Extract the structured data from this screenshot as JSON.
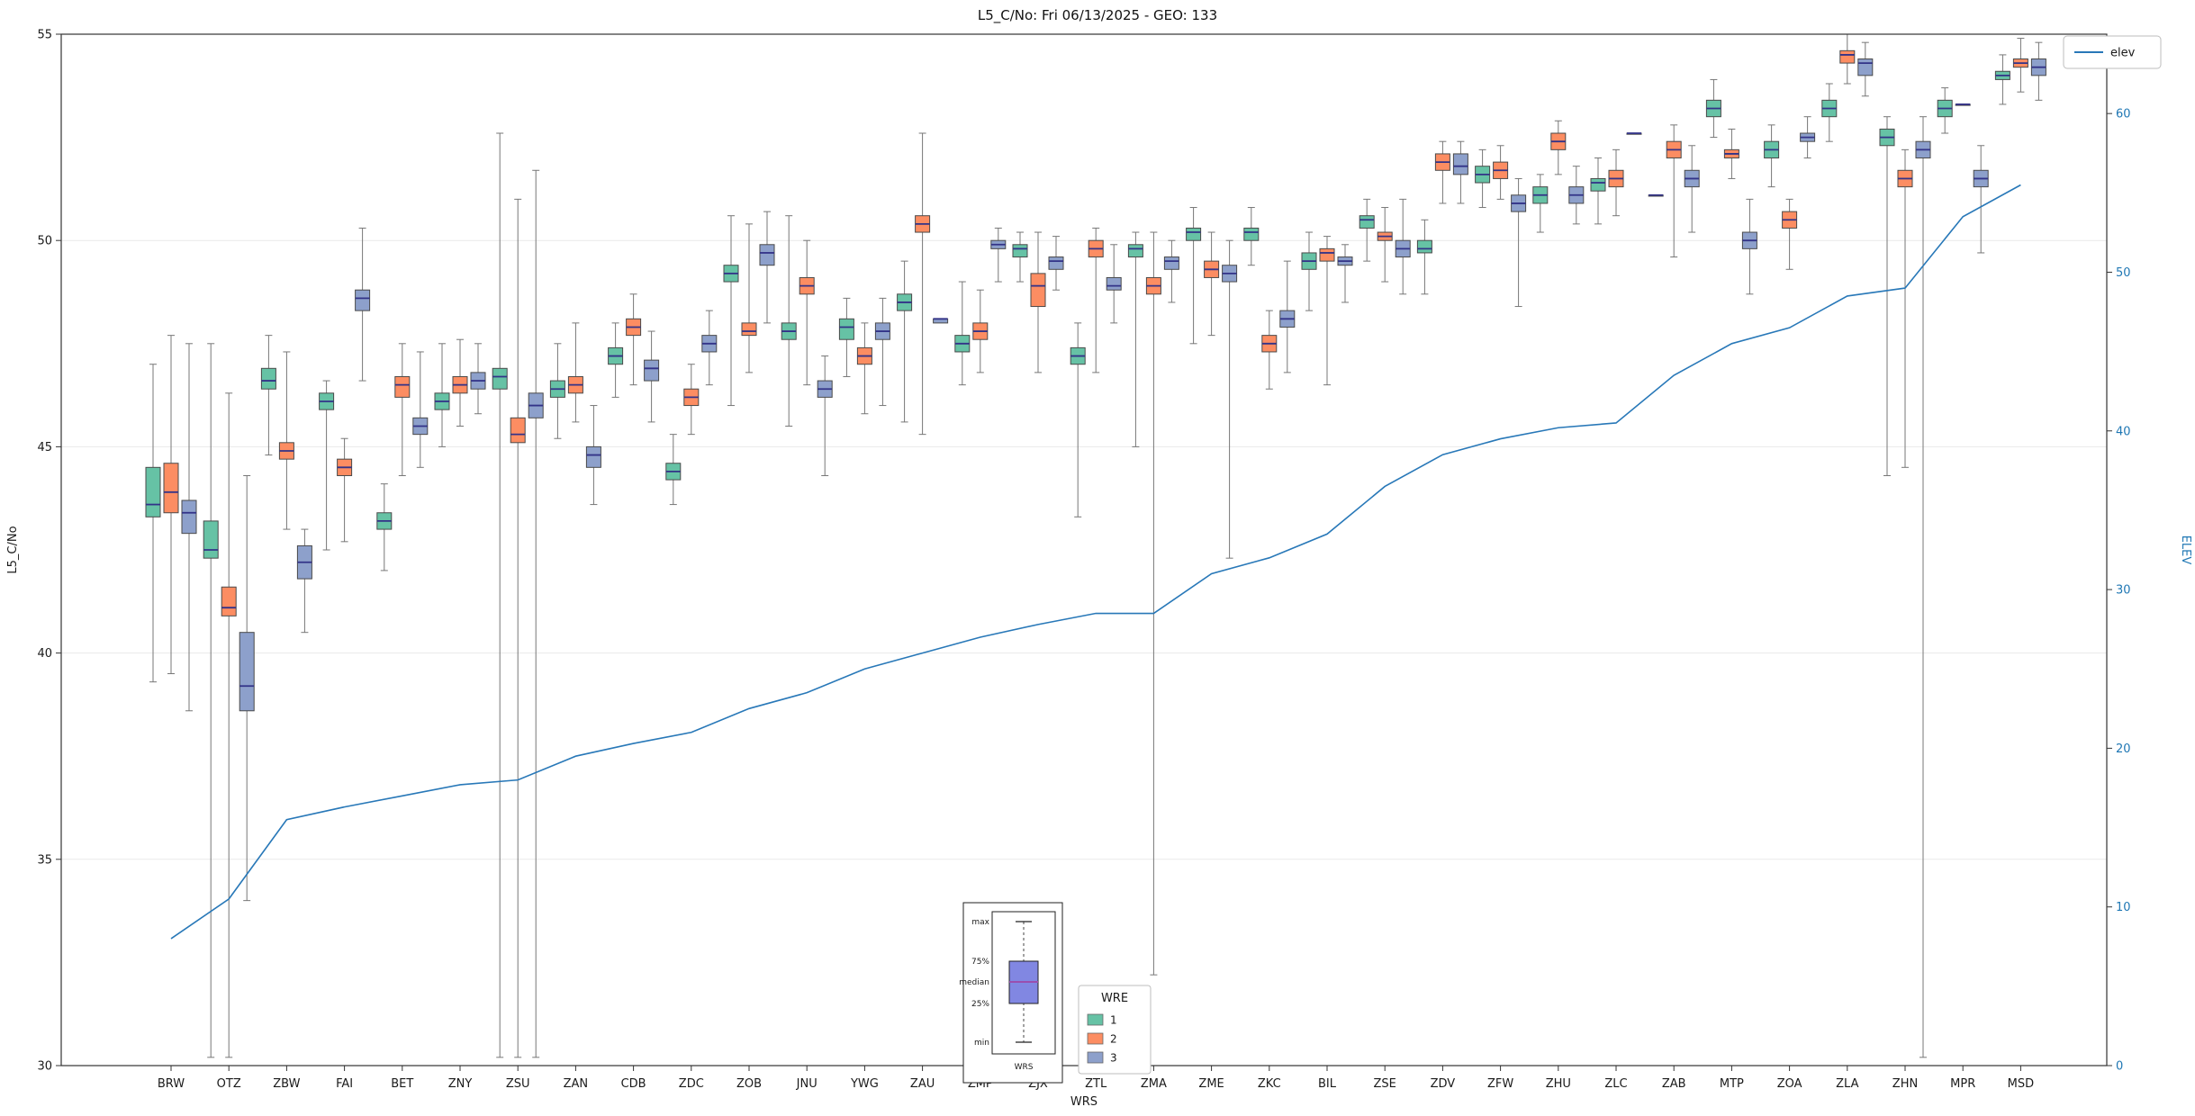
{
  "title": "L5_C/No: Fri 06/13/2025 - GEO: 133",
  "colors": {
    "series1": "#66c2a5",
    "series2": "#fc8d62",
    "series3": "#8da0cb",
    "median": "#333388",
    "elev_line": "#2878b8",
    "whisker": "#777777",
    "box_edge": "#4a4a4a",
    "right_axis_text": "#1f77b4",
    "grid": "#e9e9e9",
    "frame": "#333333",
    "inset_box_fill": "#8187e2",
    "inset_median": "#9a4fae"
  },
  "legend_elev": {
    "label": "elev"
  },
  "legend_wre": {
    "title": "WRE",
    "entries": [
      {
        "label": "1",
        "color": "#66c2a5"
      },
      {
        "label": "2",
        "color": "#fc8d62"
      },
      {
        "label": "3",
        "color": "#8da0cb"
      }
    ]
  },
  "inset": {
    "labels": [
      "max",
      "75%",
      "median",
      "25%",
      "min"
    ],
    "xlabel": "WRS"
  },
  "chart_data": {
    "type": "box",
    "title": "L5_C/No: Fri 06/13/2025 - GEO: 133",
    "xlabel": "WRS",
    "ylabel": "L5_C/No",
    "ylabel_right": "ELEV",
    "grid": true,
    "stats_format": "[whisker_min, q1, median, q3, whisker_max]",
    "axes": {
      "left": {
        "min": 30,
        "max": 55,
        "ticks": [
          30,
          35,
          40,
          45,
          50,
          55
        ]
      },
      "right": {
        "min": 0,
        "max": 65,
        "ticks": [
          0,
          10,
          20,
          30,
          40,
          50,
          60
        ]
      }
    },
    "categories": [
      "BRW",
      "OTZ",
      "ZBW",
      "FAI",
      "BET",
      "ZNY",
      "ZSU",
      "ZAN",
      "CDB",
      "ZDC",
      "ZOB",
      "JNU",
      "YWG",
      "ZAU",
      "ZMP",
      "ZJX",
      "ZTL",
      "ZMA",
      "ZME",
      "ZKC",
      "BIL",
      "ZSE",
      "ZDV",
      "ZFW",
      "ZHU",
      "ZLC",
      "ZAB",
      "MTP",
      "ZOA",
      "ZLA",
      "ZHN",
      "MPR",
      "MSD"
    ],
    "box_series": [
      {
        "name": "1",
        "color": "#66c2a5",
        "stats": [
          [
            39.3,
            43.3,
            43.6,
            44.5,
            47.0
          ],
          [
            30.2,
            42.3,
            42.5,
            43.2,
            47.5
          ],
          [
            44.8,
            46.4,
            46.6,
            46.9,
            47.7
          ],
          [
            42.5,
            45.9,
            46.1,
            46.3,
            46.6
          ],
          [
            42.0,
            43.0,
            43.2,
            43.4,
            44.1
          ],
          [
            45.0,
            45.9,
            46.1,
            46.3,
            47.5
          ],
          [
            30.2,
            46.4,
            46.7,
            46.9,
            52.6
          ],
          [
            45.2,
            46.2,
            46.4,
            46.6,
            47.5
          ],
          [
            46.2,
            47.0,
            47.2,
            47.4,
            48.0
          ],
          [
            43.6,
            44.2,
            44.4,
            44.6,
            45.3
          ],
          [
            46.0,
            49.0,
            49.2,
            49.4,
            50.6
          ],
          [
            45.5,
            47.6,
            47.8,
            48.0,
            50.6
          ],
          [
            46.7,
            47.6,
            47.9,
            48.1,
            48.6
          ],
          [
            45.6,
            48.3,
            48.5,
            48.7,
            49.5
          ],
          [
            46.5,
            47.3,
            47.5,
            47.7,
            49.0
          ],
          [
            49.0,
            49.6,
            49.8,
            49.9,
            50.2
          ],
          [
            43.3,
            47.0,
            47.2,
            47.4,
            48.0
          ],
          [
            45.0,
            49.6,
            49.8,
            49.9,
            50.2
          ],
          [
            47.5,
            50.0,
            50.2,
            50.3,
            50.8
          ],
          [
            49.4,
            50.0,
            50.2,
            50.3,
            50.8
          ],
          [
            48.3,
            49.3,
            49.5,
            49.7,
            50.2
          ],
          [
            49.5,
            50.3,
            50.5,
            50.6,
            51.0
          ],
          [
            48.7,
            49.7,
            49.8,
            50.0,
            50.5
          ],
          [
            50.8,
            51.4,
            51.6,
            51.8,
            52.2
          ],
          [
            50.2,
            50.9,
            51.1,
            51.3,
            51.6
          ],
          [
            50.4,
            51.2,
            51.4,
            51.5,
            52.0
          ],
          [
            51.1,
            51.1,
            51.1,
            51.1,
            51.1
          ],
          [
            52.5,
            53.0,
            53.2,
            53.4,
            53.9
          ],
          [
            51.3,
            52.0,
            52.2,
            52.4,
            52.8
          ],
          [
            52.4,
            53.0,
            53.2,
            53.4,
            53.8
          ],
          [
            44.3,
            52.3,
            52.5,
            52.7,
            53.0
          ],
          [
            52.6,
            53.0,
            53.2,
            53.4,
            53.7
          ],
          [
            53.3,
            53.9,
            54.0,
            54.1,
            54.5
          ]
        ]
      },
      {
        "name": "2",
        "color": "#fc8d62",
        "stats": [
          [
            39.5,
            43.4,
            43.9,
            44.6,
            47.7
          ],
          [
            30.2,
            40.9,
            41.1,
            41.6,
            46.3
          ],
          [
            43.0,
            44.7,
            44.9,
            45.1,
            47.3
          ],
          [
            42.7,
            44.3,
            44.5,
            44.7,
            45.2
          ],
          [
            44.3,
            46.2,
            46.5,
            46.7,
            47.5
          ],
          [
            45.5,
            46.3,
            46.5,
            46.7,
            47.6
          ],
          [
            30.2,
            45.1,
            45.3,
            45.7,
            51.0
          ],
          [
            45.6,
            46.3,
            46.5,
            46.7,
            48.0
          ],
          [
            46.5,
            47.7,
            47.9,
            48.1,
            48.7
          ],
          [
            45.3,
            46.0,
            46.2,
            46.4,
            47.0
          ],
          [
            46.8,
            47.7,
            47.8,
            48.0,
            50.4
          ],
          [
            46.5,
            48.7,
            48.9,
            49.1,
            50.0
          ],
          [
            45.8,
            47.0,
            47.2,
            47.4,
            48.0
          ],
          [
            45.3,
            50.2,
            50.4,
            50.6,
            52.6
          ],
          [
            46.8,
            47.6,
            47.8,
            48.0,
            48.8
          ],
          [
            46.8,
            48.4,
            48.9,
            49.2,
            50.2
          ],
          [
            46.8,
            49.6,
            49.8,
            50.0,
            50.3
          ],
          [
            32.2,
            48.7,
            48.9,
            49.1,
            50.2
          ],
          [
            47.7,
            49.1,
            49.3,
            49.5,
            50.2
          ],
          [
            46.4,
            47.3,
            47.5,
            47.7,
            48.3
          ],
          [
            46.5,
            49.5,
            49.7,
            49.8,
            50.1
          ],
          [
            49.0,
            50.0,
            50.1,
            50.2,
            50.8
          ],
          [
            50.9,
            51.7,
            51.9,
            52.1,
            52.4
          ],
          [
            51.0,
            51.5,
            51.7,
            51.9,
            52.3
          ],
          [
            51.6,
            52.2,
            52.4,
            52.6,
            52.9
          ],
          [
            50.6,
            51.3,
            51.5,
            51.7,
            52.2
          ],
          [
            49.6,
            52.0,
            52.2,
            52.4,
            52.8
          ],
          [
            51.5,
            52.0,
            52.1,
            52.2,
            52.7
          ],
          [
            49.3,
            50.3,
            50.5,
            50.7,
            51.0
          ],
          [
            53.8,
            54.3,
            54.5,
            54.6,
            55.0
          ],
          [
            44.5,
            51.3,
            51.5,
            51.7,
            52.2
          ],
          [
            53.3,
            53.3,
            53.3,
            53.3,
            53.3
          ],
          [
            53.6,
            54.2,
            54.3,
            54.4,
            54.9
          ]
        ]
      },
      {
        "name": "3",
        "color": "#8da0cb",
        "stats": [
          [
            38.6,
            42.9,
            43.4,
            43.7,
            47.5
          ],
          [
            34.0,
            38.6,
            39.2,
            40.5,
            44.3
          ],
          [
            40.5,
            41.8,
            42.2,
            42.6,
            43.0
          ],
          [
            46.6,
            48.3,
            48.6,
            48.8,
            50.3
          ],
          [
            44.5,
            45.3,
            45.5,
            45.7,
            47.3
          ],
          [
            45.8,
            46.4,
            46.6,
            46.8,
            47.5
          ],
          [
            30.2,
            45.7,
            46.0,
            46.3,
            51.7
          ],
          [
            43.6,
            44.5,
            44.8,
            45.0,
            46.0
          ],
          [
            45.6,
            46.6,
            46.9,
            47.1,
            47.8
          ],
          [
            46.5,
            47.3,
            47.5,
            47.7,
            48.3
          ],
          [
            48.0,
            49.4,
            49.7,
            49.9,
            50.7
          ],
          [
            44.3,
            46.2,
            46.4,
            46.6,
            47.2
          ],
          [
            46.0,
            47.6,
            47.8,
            48.0,
            48.6
          ],
          [
            48.0,
            48.0,
            48.1,
            48.1,
            48.1
          ],
          [
            49.0,
            49.8,
            49.9,
            50.0,
            50.3
          ],
          [
            48.8,
            49.3,
            49.5,
            49.6,
            50.1
          ],
          [
            48.0,
            48.8,
            48.9,
            49.1,
            49.9
          ],
          [
            48.5,
            49.3,
            49.5,
            49.6,
            50.0
          ],
          [
            42.3,
            49.0,
            49.2,
            49.4,
            50.0
          ],
          [
            46.8,
            47.9,
            48.1,
            48.3,
            49.5
          ],
          [
            48.5,
            49.4,
            49.5,
            49.6,
            49.9
          ],
          [
            48.7,
            49.6,
            49.8,
            50.0,
            51.0
          ],
          [
            50.9,
            51.6,
            51.8,
            52.1,
            52.4
          ],
          [
            48.4,
            50.7,
            50.9,
            51.1,
            51.5
          ],
          [
            50.4,
            50.9,
            51.1,
            51.3,
            51.8
          ],
          [
            52.6,
            52.6,
            52.6,
            52.6,
            52.6
          ],
          [
            50.2,
            51.3,
            51.5,
            51.7,
            52.3
          ],
          [
            48.7,
            49.8,
            50.0,
            50.2,
            51.0
          ],
          [
            52.0,
            52.4,
            52.5,
            52.6,
            53.0
          ],
          [
            53.5,
            54.0,
            54.3,
            54.4,
            54.8
          ],
          [
            30.2,
            52.0,
            52.2,
            52.4,
            53.0
          ],
          [
            49.7,
            51.3,
            51.5,
            51.7,
            52.3
          ],
          [
            53.4,
            54.0,
            54.2,
            54.4,
            54.8
          ]
        ]
      }
    ],
    "line_series": {
      "name": "elev",
      "axis": "right",
      "color": "#2878b8",
      "values": [
        8,
        10.5,
        15.5,
        16.3,
        17,
        17.7,
        18,
        19.5,
        20.3,
        21,
        22.5,
        23.5,
        25,
        26,
        27,
        27.8,
        28.5,
        28.5,
        31,
        32,
        33.5,
        36.5,
        38.5,
        39.5,
        40.2,
        40.5,
        43.5,
        45.5,
        46.5,
        48.5,
        49,
        53.5,
        55.5
      ]
    }
  }
}
